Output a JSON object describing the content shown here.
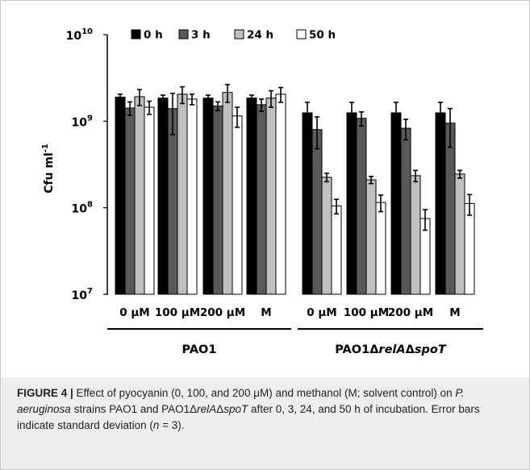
{
  "chart_data": {
    "type": "bar",
    "ylabel": "Cfu ml",
    "ylabel_superscript": "-1",
    "yscale": "log",
    "ylim": [
      10000000,
      10000000000
    ],
    "yticks": [
      {
        "value": 10000000,
        "base": "10",
        "exp": "7"
      },
      {
        "value": 100000000,
        "base": "10",
        "exp": "8"
      },
      {
        "value": 1000000000,
        "base": "10",
        "exp": "9"
      },
      {
        "value": 10000000000,
        "base": "10",
        "exp": "10"
      }
    ],
    "legend_position": "top",
    "groups": [
      {
        "label": "PAO1",
        "label_parts": [
          {
            "text": "PAO1",
            "italic": false
          }
        ]
      },
      {
        "label": "PAO1ΔrelAΔspoT",
        "label_parts": [
          {
            "text": "PAO1Δ",
            "italic": false
          },
          {
            "text": "relA",
            "italic": true
          },
          {
            "text": "Δ",
            "italic": false
          },
          {
            "text": "spoT",
            "italic": true
          }
        ]
      }
    ],
    "categories": [
      "0 µM",
      "100 µM",
      "200 µM",
      "M",
      "0 µM",
      "100 µM",
      "200 µM",
      "M"
    ],
    "series": [
      {
        "name": "0 h",
        "color": "#000000",
        "values": [
          1900000000,
          1850000000,
          1850000000,
          1850000000,
          1250000000,
          1250000000,
          1250000000,
          1250000000
        ],
        "errors": [
          150000000,
          150000000,
          150000000,
          150000000,
          400000000,
          400000000,
          400000000,
          400000000
        ]
      },
      {
        "name": "3 h",
        "color": "#595959",
        "values": [
          1420000000,
          1400000000,
          1500000000,
          1550000000,
          800000000,
          1080000000,
          830000000,
          950000000
        ],
        "errors": [
          250000000,
          700000000,
          170000000,
          250000000,
          320000000,
          200000000,
          220000000,
          450000000
        ]
      },
      {
        "name": "24 h",
        "color": "#bfbfbf",
        "values": [
          1920000000,
          2050000000,
          2150000000,
          1850000000,
          225000000,
          210000000,
          235000000,
          245000000
        ],
        "errors": [
          400000000,
          450000000,
          500000000,
          400000000,
          25000000,
          20000000,
          35000000,
          25000000
        ],
        "stroke": "#000000"
      },
      {
        "name": "50 h",
        "color": "#ffffff",
        "values": [
          1450000000,
          1800000000,
          1150000000,
          2050000000,
          105000000,
          115000000,
          75000000,
          112000000
        ],
        "errors": [
          250000000,
          250000000,
          300000000,
          400000000,
          20000000,
          25000000,
          20000000,
          30000000
        ],
        "stroke": "#000000"
      }
    ]
  },
  "caption": {
    "label": "FIGURE 4 |",
    "parts": [
      {
        "text": " Effect of pyocyanin (0, 100, and 200 μM) and methanol (M; solvent control) on ",
        "italic": false
      },
      {
        "text": "P. aeruginosa",
        "italic": true
      },
      {
        "text": " strains PAO1 and PAO1Δ",
        "italic": false
      },
      {
        "text": "relA",
        "italic": true
      },
      {
        "text": "Δ",
        "italic": false
      },
      {
        "text": "spoT",
        "italic": true
      },
      {
        "text": " after 0, 3, 24, and 50 h of incubation. Error bars indicate standard deviation (",
        "italic": false
      },
      {
        "text": "n",
        "italic": true
      },
      {
        "text": " = 3).",
        "italic": false
      }
    ]
  }
}
